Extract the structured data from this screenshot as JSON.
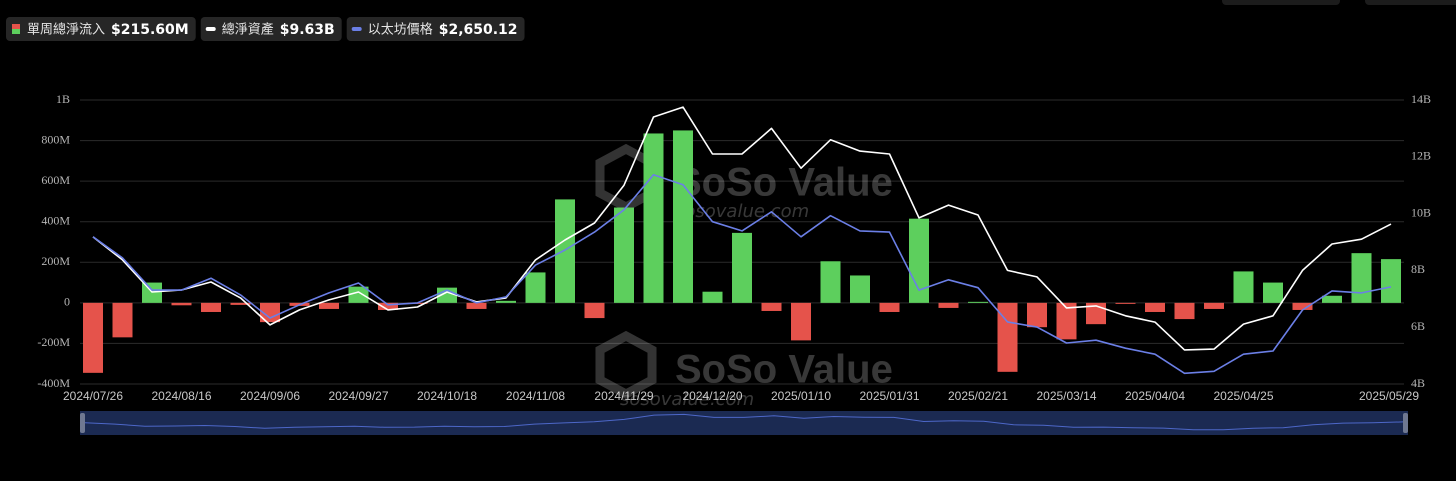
{
  "chart_data": {
    "type": "bar-line",
    "categories": [
      "2024/07/26",
      null,
      null,
      "2024/08/16",
      null,
      null,
      "2024/09/06",
      null,
      null,
      "2024/09/27",
      null,
      null,
      "2024/10/18",
      null,
      null,
      "2024/11/08",
      null,
      null,
      "2024/11/29",
      null,
      null,
      "2024/12/20",
      null,
      null,
      "2025/01/10",
      null,
      null,
      "2025/01/31",
      null,
      null,
      "2025/02/21",
      null,
      null,
      "2025/03/14",
      null,
      null,
      "2025/04/04",
      null,
      null,
      "2025/04/25",
      null,
      null,
      null,
      null,
      "2025/05/29"
    ],
    "series": [
      {
        "name": "單周總淨流入",
        "legend_value": "$215.60M",
        "type": "bar",
        "up_color": "#5dcf5d",
        "down_color": "#e5534b",
        "values": [
          -345,
          -170,
          100,
          -12,
          -45,
          -10,
          -95,
          -15,
          -30,
          80,
          -35,
          -5,
          75,
          -30,
          10,
          150,
          510,
          -75,
          470,
          835,
          850,
          55,
          345,
          -40,
          -185,
          205,
          135,
          -45,
          415,
          -25,
          5,
          -340,
          -120,
          -180,
          -105,
          -5,
          -45,
          -80,
          -30,
          155,
          100,
          -35,
          35,
          245,
          215.6
        ]
      },
      {
        "name": "總淨資產",
        "legend_value": "$9.63B",
        "type": "line",
        "axis": "y2",
        "color": "#ffffff",
        "values": [
          9.18,
          8.37,
          7.24,
          7.31,
          7.59,
          7.03,
          6.08,
          6.61,
          6.96,
          7.24,
          6.61,
          6.71,
          7.24,
          6.89,
          7.03,
          8.37,
          9.07,
          9.67,
          11.0,
          13.4,
          13.75,
          12.1,
          12.1,
          13.0,
          11.6,
          12.6,
          12.2,
          12.1,
          9.85,
          10.3,
          9.95,
          8.0,
          7.77,
          6.68,
          6.75,
          6.4,
          6.18,
          5.2,
          5.23,
          6.11,
          6.4,
          8.0,
          8.93,
          9.1,
          9.63
        ]
      },
      {
        "name": "以太坊價格",
        "legend_value": "$2,650.12",
        "type": "line",
        "axis": "y3",
        "color": "#6b7fe6",
        "values": [
          3280,
          3015,
          2610,
          2610,
          2760,
          2550,
          2260,
          2425,
          2575,
          2700,
          2425,
          2450,
          2610,
          2450,
          2525,
          2925,
          3115,
          3340,
          3620,
          4060,
          3935,
          3470,
          3355,
          3595,
          3280,
          3545,
          3355,
          3340,
          2610,
          2740,
          2640,
          2210,
          2145,
          1945,
          1980,
          1880,
          1805,
          1565,
          1590,
          1805,
          1845,
          2360,
          2600,
          2575,
          2650.12
        ]
      }
    ],
    "ylim": [
      -400,
      1000
    ],
    "yticks": [
      {
        "value": -400,
        "label": "-400M"
      },
      {
        "value": -200,
        "label": "-200M"
      },
      0,
      {
        "value": 200,
        "label": "200M"
      },
      {
        "value": 400,
        "label": "400M"
      },
      {
        "value": 600,
        "label": "600M"
      },
      {
        "value": 800,
        "label": "800M"
      },
      {
        "value": 1000,
        "label": "1B"
      }
    ],
    "y2lim": [
      4,
      14
    ],
    "y2ticks": [
      {
        "value": 4,
        "label": "4B"
      },
      {
        "value": 6,
        "label": "6B"
      },
      {
        "value": 8,
        "label": "8B"
      },
      {
        "value": 10,
        "label": "10B"
      },
      {
        "value": 12,
        "label": "12B"
      },
      {
        "value": 14,
        "label": "14B"
      }
    ],
    "y3lim": [
      1430,
      5000
    ],
    "grid": true,
    "watermark": [
      "SoSo Value",
      "sosovalue.com"
    ]
  }
}
